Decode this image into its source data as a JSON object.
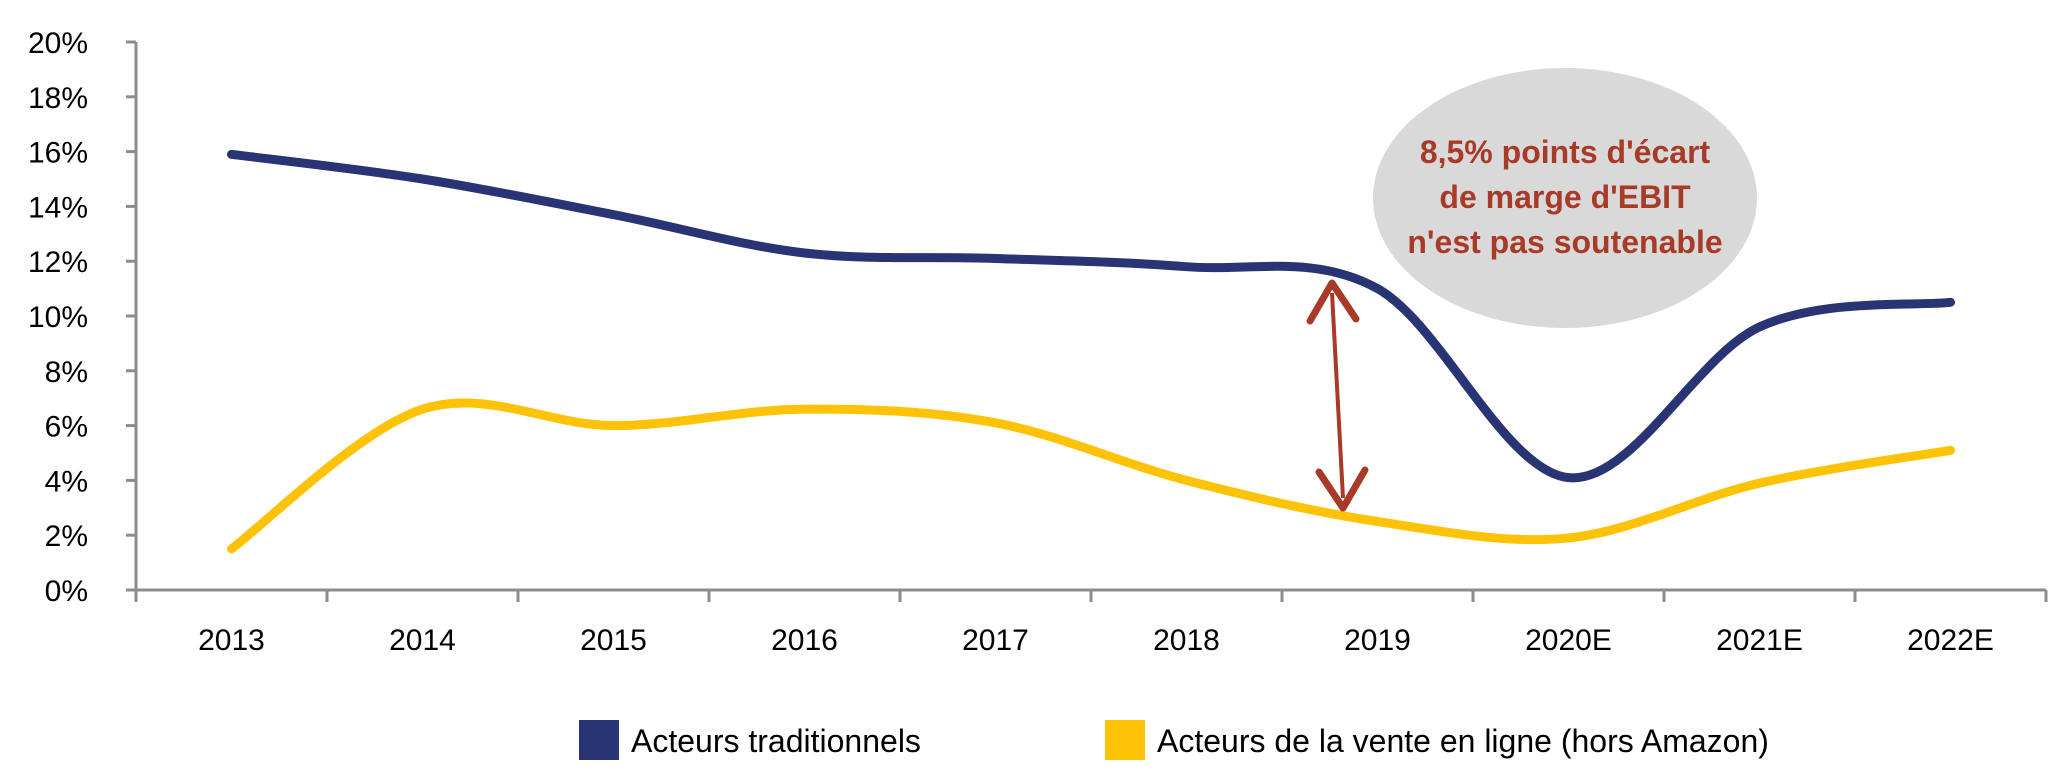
{
  "chart_data": {
    "type": "line",
    "title": "",
    "xlabel": "",
    "ylabel": "",
    "categories": [
      "2013",
      "2014",
      "2015",
      "2016",
      "2017",
      "2018",
      "2019",
      "2020E",
      "2021E",
      "2022E"
    ],
    "y_ticks": [
      "0%",
      "2%",
      "4%",
      "6%",
      "8%",
      "10%",
      "12%",
      "14%",
      "16%",
      "18%",
      "20%"
    ],
    "ylim": [
      0,
      20
    ],
    "grid": false,
    "legend_position": "bottom",
    "series": [
      {
        "name": "Acteurs traditionnels",
        "color": "#283474",
        "values": [
          15.9,
          15.0,
          13.7,
          12.3,
          12.1,
          11.8,
          11.0,
          4.1,
          9.6,
          10.5
        ]
      },
      {
        "name": "Acteurs de la vente en ligne (hors Amazon)",
        "color": "#fec307",
        "values": [
          1.5,
          6.6,
          6.0,
          6.6,
          6.1,
          4.0,
          2.5,
          1.9,
          3.9,
          5.1
        ]
      }
    ],
    "annotation": {
      "lines": [
        "8,5% points d'écart",
        "de marge d'EBIT",
        "n'est pas soutenable"
      ],
      "bubble_color": "#d9d9d9",
      "text_color": "#a83a28",
      "arrow_color": "#a83a28"
    }
  }
}
